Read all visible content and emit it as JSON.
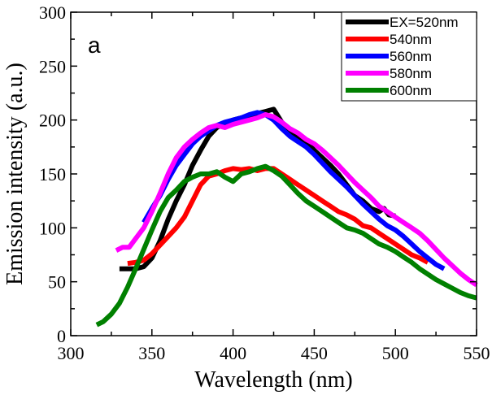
{
  "chart_data": {
    "type": "line",
    "title": "",
    "panel_label": "a",
    "xlabel": "Wavelength (nm)",
    "ylabel": "Emission intensity (a.u.)",
    "xlim": [
      300,
      550
    ],
    "ylim": [
      0,
      300
    ],
    "xticks": [
      300,
      350,
      400,
      450,
      500,
      550
    ],
    "yticks": [
      0,
      50,
      100,
      150,
      200,
      250,
      300
    ],
    "grid": false,
    "legend_position": "top-right",
    "series": [
      {
        "name": "EX=520nm",
        "color": "#000000",
        "x": [
          330,
          335,
          340,
          345,
          350,
          355,
          360,
          365,
          370,
          375,
          380,
          385,
          390,
          395,
          400,
          405,
          410,
          415,
          420,
          425,
          430,
          435,
          440,
          445,
          450,
          455,
          460,
          465,
          470,
          475,
          480,
          485,
          490,
          493,
          496,
          500
        ],
        "y": [
          62,
          62,
          62,
          64,
          72,
          88,
          108,
          125,
          140,
          158,
          172,
          185,
          193,
          197,
          200,
          202,
          204,
          206,
          208,
          210,
          198,
          190,
          185,
          180,
          172,
          165,
          158,
          150,
          140,
          130,
          125,
          118,
          115,
          118,
          112,
          111
        ]
      },
      {
        "name": "540nm",
        "color": "#ff0000",
        "x": [
          335,
          340,
          345,
          350,
          355,
          360,
          365,
          370,
          375,
          380,
          385,
          390,
          395,
          400,
          405,
          410,
          415,
          420,
          425,
          430,
          435,
          440,
          445,
          450,
          455,
          460,
          465,
          470,
          475,
          480,
          485,
          490,
          495,
          500,
          505,
          510,
          515,
          520
        ],
        "y": [
          67,
          68,
          70,
          76,
          84,
          92,
          100,
          110,
          125,
          140,
          148,
          150,
          153,
          155,
          154,
          155,
          153,
          155,
          155,
          150,
          145,
          140,
          135,
          130,
          125,
          120,
          115,
          112,
          108,
          102,
          100,
          95,
          90,
          85,
          80,
          75,
          72,
          68
        ]
      },
      {
        "name": "560nm",
        "color": "#0000ff",
        "x": [
          345,
          350,
          355,
          360,
          365,
          370,
          375,
          380,
          385,
          390,
          395,
          400,
          405,
          410,
          415,
          420,
          425,
          430,
          435,
          440,
          445,
          450,
          455,
          460,
          465,
          470,
          475,
          480,
          485,
          490,
          495,
          500,
          505,
          510,
          515,
          520,
          525,
          530
        ],
        "y": [
          105,
          118,
          130,
          145,
          158,
          168,
          178,
          185,
          190,
          195,
          198,
          200,
          202,
          205,
          207,
          205,
          200,
          192,
          185,
          180,
          175,
          168,
          160,
          152,
          145,
          138,
          130,
          122,
          115,
          108,
          102,
          98,
          92,
          85,
          78,
          72,
          66,
          62
        ]
      },
      {
        "name": "580nm",
        "color": "#ff00ff",
        "x": [
          328,
          332,
          336,
          340,
          345,
          350,
          355,
          360,
          365,
          370,
          375,
          380,
          385,
          390,
          395,
          400,
          405,
          410,
          415,
          420,
          425,
          430,
          435,
          440,
          445,
          450,
          455,
          460,
          465,
          470,
          475,
          480,
          485,
          490,
          495,
          500,
          505,
          510,
          515,
          520,
          525,
          530,
          535,
          540,
          545,
          550
        ],
        "y": [
          79,
          82,
          82,
          90,
          100,
          115,
          132,
          150,
          165,
          175,
          182,
          188,
          193,
          195,
          193,
          196,
          198,
          200,
          202,
          205,
          203,
          198,
          192,
          188,
          182,
          178,
          172,
          165,
          158,
          150,
          142,
          135,
          128,
          120,
          115,
          110,
          105,
          100,
          95,
          88,
          80,
          72,
          65,
          58,
          52,
          47
        ]
      },
      {
        "name": "600nm",
        "color": "#008000",
        "x": [
          316,
          320,
          325,
          330,
          335,
          340,
          345,
          350,
          355,
          360,
          365,
          370,
          375,
          380,
          385,
          390,
          395,
          400,
          405,
          410,
          415,
          420,
          425,
          430,
          435,
          440,
          445,
          450,
          455,
          460,
          465,
          470,
          475,
          480,
          485,
          490,
          495,
          500,
          505,
          510,
          515,
          520,
          525,
          530,
          535,
          540,
          545,
          550
        ],
        "y": [
          10,
          13,
          20,
          30,
          45,
          62,
          80,
          98,
          115,
          128,
          135,
          143,
          147,
          150,
          150,
          152,
          147,
          143,
          150,
          152,
          155,
          157,
          153,
          148,
          140,
          132,
          125,
          120,
          115,
          110,
          105,
          100,
          98,
          95,
          90,
          85,
          82,
          78,
          73,
          68,
          62,
          57,
          52,
          48,
          44,
          40,
          37,
          35
        ]
      }
    ]
  }
}
